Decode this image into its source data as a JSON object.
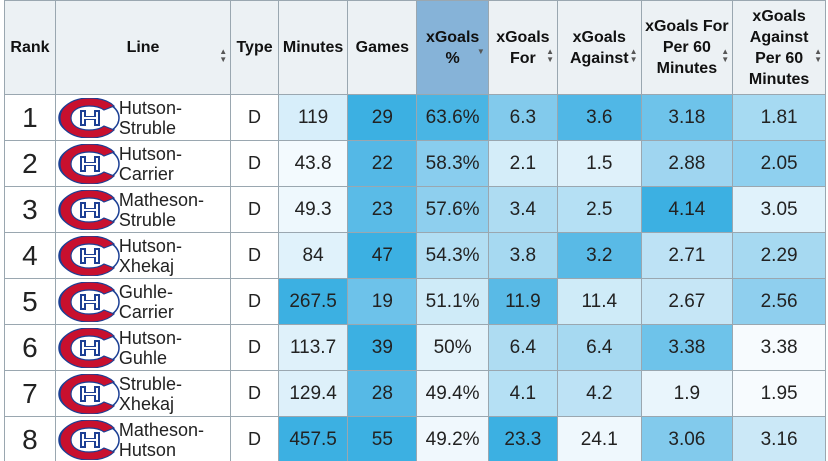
{
  "headers": {
    "rank": "Rank",
    "line": "Line",
    "type": "Type",
    "minutes": "Minutes",
    "games": "Games",
    "xg_pct": "xGoals %",
    "xg_for": "xGoals For",
    "xg_against": "xGoals Against",
    "xg_for60": "xGoals For Per 60 Minutes",
    "xg_against60": "xGoals Against Per 60 Minutes"
  },
  "rows": [
    {
      "rank": "1",
      "line1": "Hutson-",
      "line2": "Struble",
      "type": "D",
      "minutes": "119",
      "games": "29",
      "xg_pct": "63.6%",
      "xg_for": "6.3",
      "xg_against": "3.6",
      "xg_for60": "3.18",
      "xg_against60": "1.81"
    },
    {
      "rank": "2",
      "line1": "Hutson-",
      "line2": "Carrier",
      "type": "D",
      "minutes": "43.8",
      "games": "22",
      "xg_pct": "58.3%",
      "xg_for": "2.1",
      "xg_against": "1.5",
      "xg_for60": "2.88",
      "xg_against60": "2.05"
    },
    {
      "rank": "3",
      "line1": "Matheson-",
      "line2": "Struble",
      "type": "D",
      "minutes": "49.3",
      "games": "23",
      "xg_pct": "57.6%",
      "xg_for": "3.4",
      "xg_against": "2.5",
      "xg_for60": "4.14",
      "xg_against60": "3.05"
    },
    {
      "rank": "4",
      "line1": "Hutson-",
      "line2": "Xhekaj",
      "type": "D",
      "minutes": "84",
      "games": "47",
      "xg_pct": "54.3%",
      "xg_for": "3.8",
      "xg_against": "3.2",
      "xg_for60": "2.71",
      "xg_against60": "2.29"
    },
    {
      "rank": "5",
      "line1": "Guhle-",
      "line2": "Carrier",
      "type": "D",
      "minutes": "267.5",
      "games": "19",
      "xg_pct": "51.1%",
      "xg_for": "11.9",
      "xg_against": "11.4",
      "xg_for60": "2.67",
      "xg_against60": "2.56"
    },
    {
      "rank": "6",
      "line1": "Hutson-",
      "line2": "Guhle",
      "type": "D",
      "minutes": "113.7",
      "games": "39",
      "xg_pct": "50%",
      "xg_for": "6.4",
      "xg_against": "6.4",
      "xg_for60": "3.38",
      "xg_against60": "3.38"
    },
    {
      "rank": "7",
      "line1": "Struble-",
      "line2": "Xhekaj",
      "type": "D",
      "minutes": "129.4",
      "games": "28",
      "xg_pct": "49.4%",
      "xg_for": "4.1",
      "xg_against": "4.2",
      "xg_for60": "1.9",
      "xg_against60": "1.95"
    },
    {
      "rank": "8",
      "line1": "Matheson-",
      "line2": "Hutson",
      "type": "D",
      "minutes": "457.5",
      "games": "55",
      "xg_pct": "49.2%",
      "xg_for": "23.3",
      "xg_against": "24.1",
      "xg_for60": "3.06",
      "xg_against60": "3.16"
    }
  ],
  "cell_colors": [
    [
      "#d7eefa",
      "#3cb0e2",
      "#49b5e4",
      "#82caec",
      "#50b7e6",
      "#6ec3ea",
      "#a6daf2"
    ],
    [
      "#f3fafe",
      "#54b8e6",
      "#89cdee",
      "#d4edf9",
      "#dff1fa",
      "#9fd5f0",
      "#8fd0ef"
    ],
    [
      "#eef8fd",
      "#5abbe7",
      "#8ecfee",
      "#aedcf2",
      "#b5e0f4",
      "#3cb0e2",
      "#e0f2fb"
    ],
    [
      "#e0f2fb",
      "#3cb0e2",
      "#b2def3",
      "#a6d9f1",
      "#59bae6",
      "#bde2f5",
      "#a6d9f1"
    ],
    [
      "#3cb0e2",
      "#6dc2ea",
      "#cfebf8",
      "#59bae6",
      "#cfebf8",
      "#c6e6f6",
      "#8fcfee"
    ],
    [
      "#dff1fa",
      "#3cb0e2",
      "#e3f3fb",
      "#aedcf2",
      "#a6d9f1",
      "#6ec3ea",
      "#f7fbfe"
    ],
    [
      "#ddf0fa",
      "#56b9e6",
      "#ecf6fc",
      "#b5e0f4",
      "#bde2f5",
      "#e9f5fc",
      "#f7fbfe"
    ],
    [
      "#3cb0e2",
      "#3cb0e2",
      "#f0f8fd",
      "#3cb0e2",
      "#eff8fd",
      "#82caec",
      "#cbe8f7"
    ]
  ],
  "colors": {
    "sorted_header": "#86b3d8",
    "header_bg": "#ecf1f4",
    "logo_red": "#c8102e",
    "logo_blue": "#1c3f94"
  },
  "logo_icon": "canadiens-logo-icon",
  "sort_icon": "sort-arrows-icon"
}
